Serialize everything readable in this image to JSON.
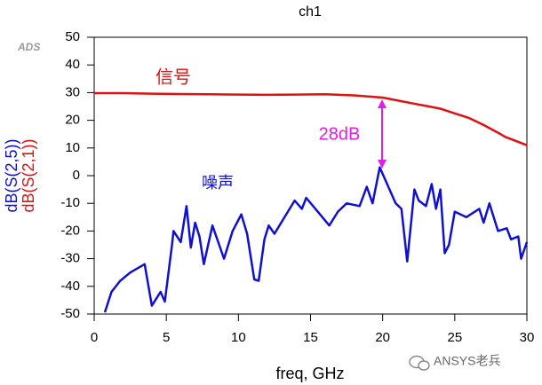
{
  "chart_data": {
    "type": "line",
    "title": "ch1",
    "brand": "ADS",
    "xlabel": "freq, GHz",
    "watermark": "ANSYS老兵",
    "xlim": [
      0,
      30
    ],
    "xticks": [
      0,
      5,
      10,
      15,
      20,
      25,
      30
    ],
    "ylim": [
      -50,
      50
    ],
    "yticks": [
      -50,
      -40,
      -30,
      -20,
      -10,
      0,
      10,
      20,
      30,
      40,
      50
    ],
    "annotations": [
      {
        "text": "信号",
        "color": "#e01010"
      },
      {
        "text": "噪声",
        "color": "#1010d0"
      },
      {
        "text": "28dB",
        "color": "#e020e0"
      }
    ],
    "series": [
      {
        "name": "dB(S(2,5))",
        "color": "#1010d0",
        "x": [
          0.74,
          1.2,
          1.8,
          2.5,
          3.5,
          4.0,
          4.6,
          4.9,
          5.4,
          5.5,
          6.0,
          6.4,
          6.7,
          7.0,
          7.3,
          7.6,
          8.2,
          9.0,
          9.6,
          10.2,
          10.6,
          11.1,
          11.4,
          11.8,
          12.1,
          12.5,
          13.9,
          14.4,
          14.7,
          15.5,
          16.3,
          16.9,
          17.5,
          18.4,
          18.9,
          19.3,
          19.8,
          20.9,
          21.3,
          21.7,
          22.2,
          22.5,
          23.0,
          23.4,
          23.7,
          24.0,
          24.3,
          24.6,
          25.0,
          25.8,
          26.7,
          27.0,
          27.4,
          28.0,
          28.6,
          28.9,
          29.4,
          29.6,
          30.0
        ],
        "values": [
          -49.4,
          -42,
          -38,
          -35,
          -32,
          -47,
          -42,
          -45.5,
          -24.7,
          -20,
          -24,
          -11,
          -26,
          -17,
          -22,
          -32,
          -18,
          -30,
          -20,
          -14,
          -21,
          -37.5,
          -38,
          -23,
          -18,
          -21,
          -9,
          -12,
          -8,
          -13,
          -18,
          -13,
          -10,
          -11,
          -4,
          -10,
          3,
          -10,
          -12,
          -31,
          -5,
          -9,
          -11,
          -3,
          -12,
          -5,
          -28,
          -25,
          -13,
          -15,
          -12,
          -17,
          -10,
          -20,
          -19,
          -23,
          -22,
          -30,
          -24
        ]
      },
      {
        "name": "dB(S(2,1))",
        "color": "#e01010",
        "x": [
          0,
          2,
          4,
          6,
          8,
          10,
          12,
          14,
          16,
          18,
          19,
          20,
          21,
          22,
          23,
          24,
          25,
          26,
          27,
          28,
          28.5,
          29,
          30
        ],
        "values": [
          29.8,
          29.8,
          29.6,
          29.5,
          29.4,
          29.3,
          29.2,
          29.3,
          29.4,
          29,
          28.6,
          28.2,
          27.2,
          26.2,
          25.2,
          24.2,
          22.5,
          20.8,
          18.3,
          15.5,
          14,
          13,
          11
        ]
      }
    ]
  }
}
